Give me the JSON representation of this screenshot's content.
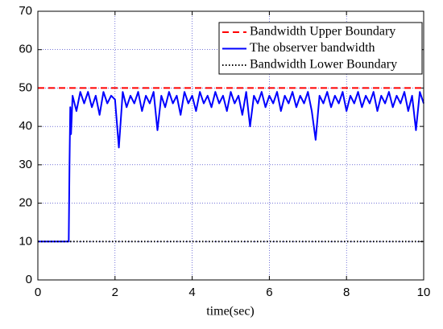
{
  "chart_data": {
    "type": "line",
    "xlabel": "time(sec)",
    "xlim": [
      0,
      10
    ],
    "xticks": [
      0,
      2,
      4,
      6,
      8,
      10
    ],
    "ylim": [
      0,
      70
    ],
    "yticks": [
      0,
      10,
      20,
      30,
      40,
      50,
      60,
      70
    ],
    "grid": true,
    "legend": "upper right",
    "series": [
      {
        "name": "Bandwidth Upper Boundary",
        "color": "#ff0000",
        "style": "dashed",
        "x": [
          0,
          10
        ],
        "values": [
          50,
          50
        ]
      },
      {
        "name": "The observer bandwidth",
        "color": "#0000ff",
        "style": "solid",
        "x": [
          0,
          0.8,
          0.82,
          0.84,
          0.86,
          0.9,
          1.0,
          1.1,
          1.2,
          1.3,
          1.4,
          1.5,
          1.6,
          1.7,
          1.8,
          1.9,
          2.0,
          2.1,
          2.2,
          2.3,
          2.4,
          2.5,
          2.6,
          2.7,
          2.8,
          2.9,
          3.0,
          3.1,
          3.2,
          3.3,
          3.4,
          3.5,
          3.6,
          3.7,
          3.8,
          3.9,
          4.0,
          4.1,
          4.2,
          4.3,
          4.4,
          4.5,
          4.6,
          4.7,
          4.8,
          4.9,
          5.0,
          5.1,
          5.2,
          5.3,
          5.4,
          5.5,
          5.6,
          5.7,
          5.8,
          5.9,
          6.0,
          6.1,
          6.2,
          6.3,
          6.4,
          6.5,
          6.6,
          6.7,
          6.8,
          6.9,
          7.0,
          7.1,
          7.2,
          7.3,
          7.4,
          7.5,
          7.6,
          7.7,
          7.8,
          7.9,
          8.0,
          8.1,
          8.2,
          8.3,
          8.4,
          8.5,
          8.6,
          8.7,
          8.8,
          8.9,
          9.0,
          9.1,
          9.2,
          9.3,
          9.4,
          9.5,
          9.6,
          9.7,
          9.8,
          9.9,
          10.0
        ],
        "values": [
          10,
          10,
          30,
          45,
          38,
          48,
          44,
          49,
          46,
          49,
          45,
          48,
          43,
          49,
          46,
          48,
          47,
          34.5,
          49,
          45,
          48,
          46,
          49,
          44,
          48,
          46,
          49,
          39,
          48,
          45,
          49,
          46,
          48,
          43,
          49,
          46,
          48,
          44,
          49,
          46,
          48,
          45,
          49,
          46,
          48,
          44,
          49,
          46,
          48,
          43,
          49,
          40,
          48,
          46,
          49,
          45,
          48,
          46,
          49,
          44,
          48,
          46,
          49,
          45,
          48,
          46,
          49,
          44,
          36.5,
          48,
          46,
          49,
          45,
          48,
          46,
          49,
          44,
          48,
          46,
          49,
          45,
          48,
          46,
          49,
          44,
          48,
          46,
          49,
          45,
          48,
          46,
          49,
          44,
          48,
          39,
          49,
          46
        ]
      },
      {
        "name": "Bandwidth Lower Boundary",
        "color": "#000000",
        "style": "dotted",
        "x": [
          0,
          10
        ],
        "values": [
          10,
          10
        ]
      }
    ]
  }
}
